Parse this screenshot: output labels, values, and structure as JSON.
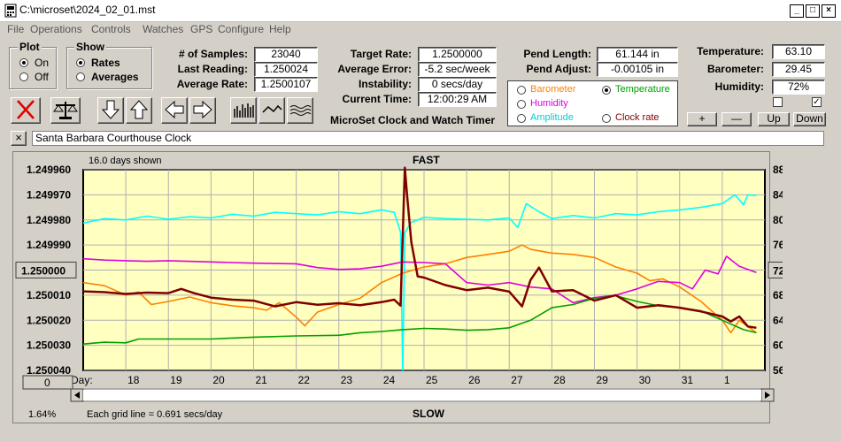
{
  "window": {
    "title": "C:\\microset\\2024_02_01.mst"
  },
  "menu": [
    "File",
    "Operations",
    "Controls",
    "Watches",
    "GPS",
    "Configure",
    "Help"
  ],
  "plot_group": {
    "title": "Plot",
    "on": "On",
    "off": "Off",
    "selected": "On"
  },
  "show_group": {
    "title": "Show",
    "rates": "Rates",
    "averages": "Averages",
    "selected": "Rates"
  },
  "stats": {
    "samples_label": "# of Samples:",
    "samples": "23040",
    "last_reading_label": "Last Reading:",
    "last_reading": "1.250024",
    "average_rate_label": "Average Rate:",
    "average_rate": "1.2500107",
    "target_rate_label": "Target Rate:",
    "target_rate": "1.2500000",
    "average_error_label": "Average Error:",
    "average_error": "-5.2 sec/week",
    "instability_label": "Instability:",
    "instability": "0 secs/day",
    "current_time_label": "Current Time:",
    "current_time": "12:00:29 AM",
    "pend_length_label": "Pend Length:",
    "pend_length": "61.144 in",
    "pend_adjust_label": "Pend Adjust:",
    "pend_adjust": "-0.00105 in",
    "temperature_label": "Temperature:",
    "temperature": "63.10",
    "barometer_label": "Barometer:",
    "barometer": "29.45",
    "humidity_label": "Humidity:",
    "humidity": "72%"
  },
  "app_caption": "MicroSet Clock and Watch Timer",
  "secondary": {
    "barometer": "Barometer",
    "temperature": "Temperature",
    "humidity": "Humidity",
    "amplitude": "Amplitude",
    "clock_rate": "Clock rate",
    "selected": "Temperature"
  },
  "adjust_buttons": {
    "plus": "+",
    "minus": "—",
    "up": "Up",
    "down": "Down"
  },
  "clock_name": "Santa Barbara Courthouse Clock",
  "close_x": "×",
  "colors": {
    "barometer": "#ff8000",
    "temperature": "#00a000",
    "humidity": "#e000e0",
    "amplitude": "#00ffff",
    "rate": "#800000",
    "plot_bg": "#ffffc0"
  },
  "chart_data": {
    "type": "line",
    "days_shown": "16.0 days shown",
    "top_label": "FAST",
    "bottom_label": "SLOW",
    "grid_note": "Each grid line = 0.691 secs/day",
    "percent": "1.64%",
    "x_label": "Day:",
    "x_ticks": [
      "18",
      "19",
      "20",
      "21",
      "22",
      "23",
      "24",
      "25",
      "26",
      "27",
      "28",
      "29",
      "30",
      "31",
      "1"
    ],
    "x_range": [
      17.0,
      33.0
    ],
    "left_axis": {
      "ticks": [
        "1.249960",
        "1.249970",
        "1.249980",
        "1.249990",
        "1.250000",
        "1.250010",
        "1.250020",
        "1.250030",
        "1.250040"
      ],
      "range": [
        1.25004,
        1.24996
      ],
      "center_button": "1.250000",
      "bottom_button": "0"
    },
    "right_axis": {
      "ticks": [
        "88.00",
        "84.00",
        "80.00",
        "76.00",
        "72.00",
        "68.00",
        "64.00",
        "60.00",
        "56.00"
      ],
      "range": [
        56,
        88
      ],
      "center_button": "72.00"
    },
    "series": [
      {
        "name": "Amplitude",
        "axis": "right",
        "points": [
          [
            17.0,
            79.5
          ],
          [
            17.5,
            80.2
          ],
          [
            18.0,
            80.0
          ],
          [
            18.5,
            80.6
          ],
          [
            19.0,
            80.1
          ],
          [
            19.5,
            80.5
          ],
          [
            20.0,
            80.3
          ],
          [
            20.5,
            80.9
          ],
          [
            21.0,
            80.6
          ],
          [
            21.5,
            81.2
          ],
          [
            22.0,
            81.0
          ],
          [
            22.5,
            80.8
          ],
          [
            23.0,
            81.3
          ],
          [
            23.5,
            81.0
          ],
          [
            24.0,
            81.6
          ],
          [
            24.3,
            81.2
          ],
          [
            24.45,
            78.0
          ],
          [
            24.5,
            56.0
          ],
          [
            24.55,
            78.0
          ],
          [
            24.7,
            79.6
          ],
          [
            25.0,
            80.4
          ],
          [
            25.5,
            80.2
          ],
          [
            26.0,
            80.1
          ],
          [
            26.5,
            80.0
          ],
          [
            27.0,
            80.3
          ],
          [
            27.2,
            78.8
          ],
          [
            27.4,
            82.6
          ],
          [
            27.7,
            81.3
          ],
          [
            28.0,
            80.2
          ],
          [
            28.5,
            80.7
          ],
          [
            29.0,
            80.3
          ],
          [
            29.5,
            81.0
          ],
          [
            30.0,
            80.8
          ],
          [
            30.5,
            81.3
          ],
          [
            31.0,
            81.6
          ],
          [
            31.5,
            82.0
          ],
          [
            32.0,
            82.6
          ],
          [
            32.3,
            84.0
          ],
          [
            32.5,
            82.4
          ],
          [
            32.6,
            84.0
          ],
          [
            32.8,
            83.9
          ]
        ]
      },
      {
        "name": "Barometer",
        "axis": "right",
        "points": [
          [
            17.0,
            70.0
          ],
          [
            17.5,
            69.5
          ],
          [
            18.0,
            68.0
          ],
          [
            18.3,
            68.5
          ],
          [
            18.6,
            66.5
          ],
          [
            19.0,
            67.0
          ],
          [
            19.5,
            67.7
          ],
          [
            20.0,
            66.8
          ],
          [
            20.5,
            66.3
          ],
          [
            21.0,
            66.0
          ],
          [
            21.3,
            65.6
          ],
          [
            21.6,
            66.8
          ],
          [
            22.0,
            64.5
          ],
          [
            22.2,
            63.1
          ],
          [
            22.5,
            65.3
          ],
          [
            23.0,
            66.5
          ],
          [
            23.5,
            67.5
          ],
          [
            24.0,
            70.0
          ],
          [
            24.5,
            71.5
          ],
          [
            25.0,
            72.5
          ],
          [
            25.5,
            73.0
          ],
          [
            26.0,
            74.0
          ],
          [
            26.5,
            74.5
          ],
          [
            27.0,
            75.0
          ],
          [
            27.3,
            76.0
          ],
          [
            27.5,
            75.3
          ],
          [
            28.0,
            74.7
          ],
          [
            28.5,
            74.5
          ],
          [
            29.0,
            74.0
          ],
          [
            29.5,
            72.5
          ],
          [
            30.0,
            71.5
          ],
          [
            30.3,
            70.3
          ],
          [
            30.6,
            70.6
          ],
          [
            31.0,
            69.3
          ],
          [
            31.5,
            67.0
          ],
          [
            32.0,
            64.0
          ],
          [
            32.2,
            62.0
          ],
          [
            32.4,
            64.0
          ],
          [
            32.6,
            63.0
          ],
          [
            32.8,
            62.0
          ]
        ]
      },
      {
        "name": "Humidity",
        "axis": "right",
        "points": [
          [
            17.0,
            73.8
          ],
          [
            17.5,
            73.6
          ],
          [
            18.0,
            73.5
          ],
          [
            18.5,
            73.4
          ],
          [
            19.0,
            73.5
          ],
          [
            20.0,
            73.3
          ],
          [
            21.0,
            73.1
          ],
          [
            22.0,
            73.0
          ],
          [
            22.5,
            72.4
          ],
          [
            23.0,
            72.1
          ],
          [
            23.5,
            72.2
          ],
          [
            24.0,
            72.6
          ],
          [
            24.5,
            73.3
          ],
          [
            25.0,
            73.2
          ],
          [
            25.5,
            73.0
          ],
          [
            26.0,
            70.0
          ],
          [
            26.5,
            69.6
          ],
          [
            27.0,
            70.0
          ],
          [
            27.5,
            69.3
          ],
          [
            28.0,
            69.0
          ],
          [
            28.5,
            66.8
          ],
          [
            29.0,
            67.6
          ],
          [
            29.5,
            68.0
          ],
          [
            30.0,
            69.0
          ],
          [
            30.5,
            70.2
          ],
          [
            31.0,
            70.0
          ],
          [
            31.3,
            69.0
          ],
          [
            31.6,
            72.0
          ],
          [
            31.9,
            71.4
          ],
          [
            32.1,
            74.2
          ],
          [
            32.4,
            72.6
          ],
          [
            32.8,
            71.6
          ]
        ]
      },
      {
        "name": "Temperature",
        "axis": "right",
        "points": [
          [
            17.0,
            60.2
          ],
          [
            17.5,
            60.5
          ],
          [
            18.0,
            60.4
          ],
          [
            18.3,
            61.0
          ],
          [
            19.0,
            61.0
          ],
          [
            20.0,
            61.0
          ],
          [
            21.0,
            61.3
          ],
          [
            22.0,
            61.5
          ],
          [
            23.0,
            61.6
          ],
          [
            23.5,
            62.0
          ],
          [
            24.0,
            62.2
          ],
          [
            24.5,
            62.5
          ],
          [
            25.0,
            62.7
          ],
          [
            25.5,
            62.6
          ],
          [
            26.0,
            62.4
          ],
          [
            26.5,
            62.5
          ],
          [
            27.0,
            62.8
          ],
          [
            27.5,
            64.0
          ],
          [
            28.0,
            66.0
          ],
          [
            28.5,
            66.5
          ],
          [
            29.0,
            67.5
          ],
          [
            29.5,
            67.9
          ],
          [
            30.0,
            67.0
          ],
          [
            30.5,
            66.3
          ],
          [
            31.0,
            66.0
          ],
          [
            31.5,
            65.5
          ],
          [
            32.0,
            64.0
          ],
          [
            32.5,
            62.5
          ],
          [
            32.8,
            62.0
          ]
        ]
      },
      {
        "name": "Rate",
        "axis": "left",
        "points": [
          [
            17.0,
            1.2500085
          ],
          [
            17.5,
            1.2500088
          ],
          [
            18.0,
            1.2500095
          ],
          [
            18.5,
            1.250009
          ],
          [
            19.0,
            1.2500092
          ],
          [
            19.3,
            1.2500075
          ],
          [
            19.6,
            1.2500092
          ],
          [
            20.0,
            1.250011
          ],
          [
            20.5,
            1.2500118
          ],
          [
            21.0,
            1.2500122
          ],
          [
            21.5,
            1.2500145
          ],
          [
            22.0,
            1.2500128
          ],
          [
            22.5,
            1.2500138
          ],
          [
            23.0,
            1.2500132
          ],
          [
            23.5,
            1.250014
          ],
          [
            24.0,
            1.2500128
          ],
          [
            24.3,
            1.2500118
          ],
          [
            24.45,
            1.2500142
          ],
          [
            24.55,
            1.2499592
          ],
          [
            24.6,
            1.24997
          ],
          [
            24.7,
            1.2499888
          ],
          [
            24.85,
            1.2500025
          ],
          [
            25.0,
            1.250003
          ],
          [
            25.5,
            1.250006
          ],
          [
            26.0,
            1.250008
          ],
          [
            26.5,
            1.250007
          ],
          [
            27.0,
            1.2500086
          ],
          [
            27.3,
            1.2500145
          ],
          [
            27.5,
            1.250004
          ],
          [
            27.7,
            1.249999
          ],
          [
            28.0,
            1.2500085
          ],
          [
            28.5,
            1.250008
          ],
          [
            29.0,
            1.2500122
          ],
          [
            29.5,
            1.25001
          ],
          [
            30.0,
            1.250015
          ],
          [
            30.5,
            1.250014
          ],
          [
            31.0,
            1.250015
          ],
          [
            31.5,
            1.2500165
          ],
          [
            32.0,
            1.2500185
          ],
          [
            32.2,
            1.2500205
          ],
          [
            32.4,
            1.2500185
          ],
          [
            32.6,
            1.2500225
          ],
          [
            32.8,
            1.250023
          ]
        ]
      }
    ]
  }
}
